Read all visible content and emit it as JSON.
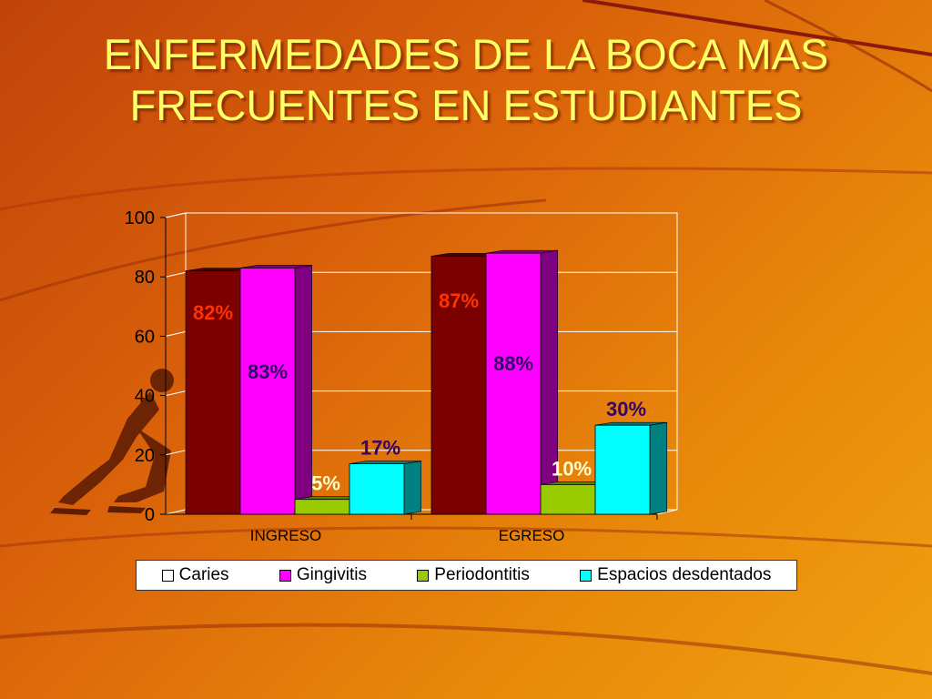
{
  "title": "ENFERMEDADES DE LA BOCA MAS FRECUENTES EN ESTUDIANTES",
  "title_lines": [
    "ENFERMEDADES DE LA BOCA MAS",
    "FRECUENTES EN ESTUDIANTES"
  ],
  "colors": {
    "title": "#ffff66",
    "series": [
      "#7b0000",
      "#ff00ff",
      "#99cc00",
      "#00ffff"
    ],
    "series_side": [
      "#4a0000",
      "#7f0080",
      "#5c8000",
      "#008080"
    ],
    "labels": [
      "#ff3300",
      "#330066",
      "#ffffcc",
      "#330066"
    ]
  },
  "chart_data": {
    "type": "bar",
    "categories": [
      "INGRESO",
      "EGRESO"
    ],
    "series": [
      {
        "name": "Caries",
        "values": [
          82,
          87
        ],
        "labels": [
          "82%",
          "87%"
        ]
      },
      {
        "name": "Gingivitis",
        "values": [
          83,
          88
        ],
        "labels": [
          "83%",
          "88%"
        ]
      },
      {
        "name": "Periodontitis",
        "values": [
          5,
          10
        ],
        "labels": [
          "5%",
          "10%"
        ]
      },
      {
        "name": "Espacios desdentados",
        "values": [
          17,
          30
        ],
        "labels": [
          "17%",
          "30%"
        ]
      }
    ],
    "ylim": [
      0,
      100
    ],
    "yticks": [
      0,
      20,
      40,
      60,
      80,
      100
    ],
    "grid": true,
    "legend": "bottom",
    "title": "ENFERMEDADES DE LA BOCA MAS FRECUENTES EN ESTUDIANTES"
  }
}
